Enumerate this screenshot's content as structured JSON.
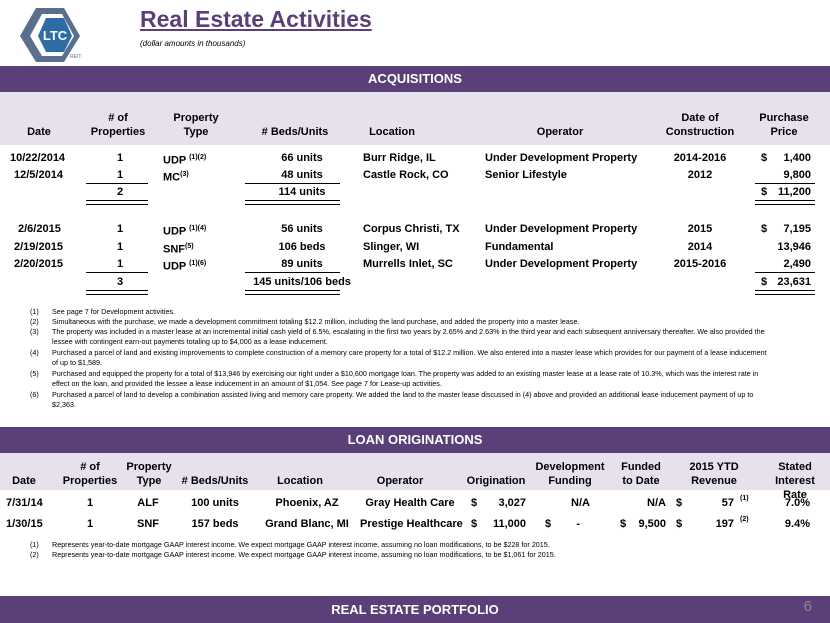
{
  "header": {
    "logo_text": "LTC",
    "logo_subtext": "REIT",
    "title": "Real Estate Activities",
    "subtitle": "(dollar amounts in thousands)"
  },
  "acquisitions": {
    "section_title": "ACQUISITIONS",
    "headers": {
      "date": "Date",
      "num_properties": "# of Properties",
      "property_type": "Property Type",
      "beds_units": "# Beds/Units",
      "location": "Location",
      "operator": "Operator",
      "date_construction": "Date of Construction",
      "purchase_price": "Purchase Price"
    },
    "rows_2014": [
      {
        "date": "10/22/2014",
        "num": "1",
        "type": "UDP",
        "sup": "(1)(2)",
        "beds": "66 units",
        "location": "Burr Ridge, IL",
        "operator": "Under Development Property",
        "construction": "2014-2016",
        "dollar": "$",
        "price": "1,400"
      },
      {
        "date": "12/5/2014",
        "num": "1",
        "type": "MC",
        "sup": "(3)",
        "beds": "48 units",
        "location": "Castle Rock, CO",
        "operator": "Senior Lifestyle",
        "construction": "2012",
        "dollar": "",
        "price": "9,800"
      }
    ],
    "total_2014": {
      "num": "2",
      "beds": "114 units",
      "dollar": "$",
      "price": "11,200"
    },
    "rows_2015": [
      {
        "date": "2/6/2015",
        "num": "1",
        "type": "UDP",
        "sup": "(1)(4)",
        "beds": "56 units",
        "location": "Corpus Christi, TX",
        "operator": "Under Development Property",
        "construction": "2015",
        "dollar": "$",
        "price": "7,195"
      },
      {
        "date": "2/19/2015",
        "num": "1",
        "type": "SNF",
        "sup": "(5)",
        "beds": "106 beds",
        "location": "Slinger, WI",
        "operator": "Fundamental",
        "construction": "2014",
        "dollar": "",
        "price": "13,946"
      },
      {
        "date": "2/20/2015",
        "num": "1",
        "type": "UDP",
        "sup": "(1)(6)",
        "beds": "89 units",
        "location": "Murrells Inlet, SC",
        "operator": "Under Development Property",
        "construction": "2015-2016",
        "dollar": "",
        "price": "2,490"
      }
    ],
    "total_2015": {
      "num": "3",
      "beds": "145 units/106 beds",
      "dollar": "$",
      "price": "23,631"
    },
    "footnotes": [
      {
        "num": "(1)",
        "text": "See page 7 for Development activities."
      },
      {
        "num": "(2)",
        "text": "Simultaneous with the purchase, we made a development commitment totaling $12.2 million, including the land purchase, and added the property into a master lease."
      },
      {
        "num": "(3)",
        "text": "The property was included in a master lease at an incremental initial cash yield of 6.5%, escalating in the first two years by 2.65% and 2.63% in the third year and each subsequent anniversary thereafter. We also provided the lessee with contingent earn-out payments totaling up to $4,000 as a lease inducement."
      },
      {
        "num": "(4)",
        "text": "Purchased a parcel of land and existing improvements to complete construction of a memory care property for a total of $12.2 million.  We also entered into a master lease which provides for our payment of a lease inducement of up to $1,589."
      },
      {
        "num": "(5)",
        "text": "Purchased and equipped the property for a total of $13,946 by exercising our right under a $10,600 mortgage loan.  The property was added to an existing master lease at a lease rate of 10.3%, which was the interest rate in effect on the loan, and provided the lessee a lease inducement in an amount of $1,054.  See page 7 for Lease-up activities."
      },
      {
        "num": "(6)",
        "text": "Purchased a parcel of land to develop a combination assisted living and memory care property.  We added the land to the master lease discussed in (4) above and provided an additional lease inducement payment of up to $2,363."
      }
    ]
  },
  "loans": {
    "section_title": "LOAN ORIGINATIONS",
    "headers": {
      "date": "Date",
      "num_properties": "# of Properties",
      "property_type": "Property Type",
      "beds_units": "# Beds/Units",
      "location": "Location",
      "operator": "Operator",
      "origination": "Origination",
      "dev_funding": "Development Funding",
      "funded": "Funded to Date",
      "ytd_revenue": "2015 YTD Revenue",
      "stated_rate": "Stated Interest Rate"
    },
    "rows": [
      {
        "date": "7/31/14",
        "num": "1",
        "type": "ALF",
        "beds": "100 units",
        "location": "Phoenix, AZ",
        "operator": "Gray Health Care",
        "orig_dollar": "$",
        "orig": "3,027",
        "dev_dollar": "",
        "dev": "N/A",
        "funded_dollar": "",
        "funded": "N/A",
        "rev_dollar": "$",
        "rev": "57",
        "rev_sup": "(1)",
        "rate": "7.0%"
      },
      {
        "date": "1/30/15",
        "num": "1",
        "type": "SNF",
        "beds": "157 beds",
        "location": "Grand Blanc, MI",
        "operator": "Prestige Healthcare",
        "orig_dollar": "$",
        "orig": "11,000",
        "dev_dollar": "$",
        "dev": "-",
        "funded_dollar": "$",
        "funded": "9,500",
        "rev_dollar": "$",
        "rev": "197",
        "rev_sup": "(2)",
        "rate": "9.4%"
      }
    ],
    "footnotes": [
      {
        "num": "(1)",
        "text": "Represents year-to-date mortgage GAAP interest income.  We expect mortgage GAAP interest income, assuming no loan modifications, to be $228 for 2015."
      },
      {
        "num": "(2)",
        "text": "Represents year-to-date mortgage GAAP interest income.  We expect mortgage GAAP interest income, assuming no loan modifications, to be $1,061 for 2015."
      }
    ]
  },
  "portfolio": {
    "section_title": "REAL ESTATE PORTFOLIO"
  },
  "page_number": "6",
  "colors": {
    "accent_purple": "#5b3f78",
    "header_band": "#e6e1ed",
    "logo_blue": "#2e6da4"
  }
}
